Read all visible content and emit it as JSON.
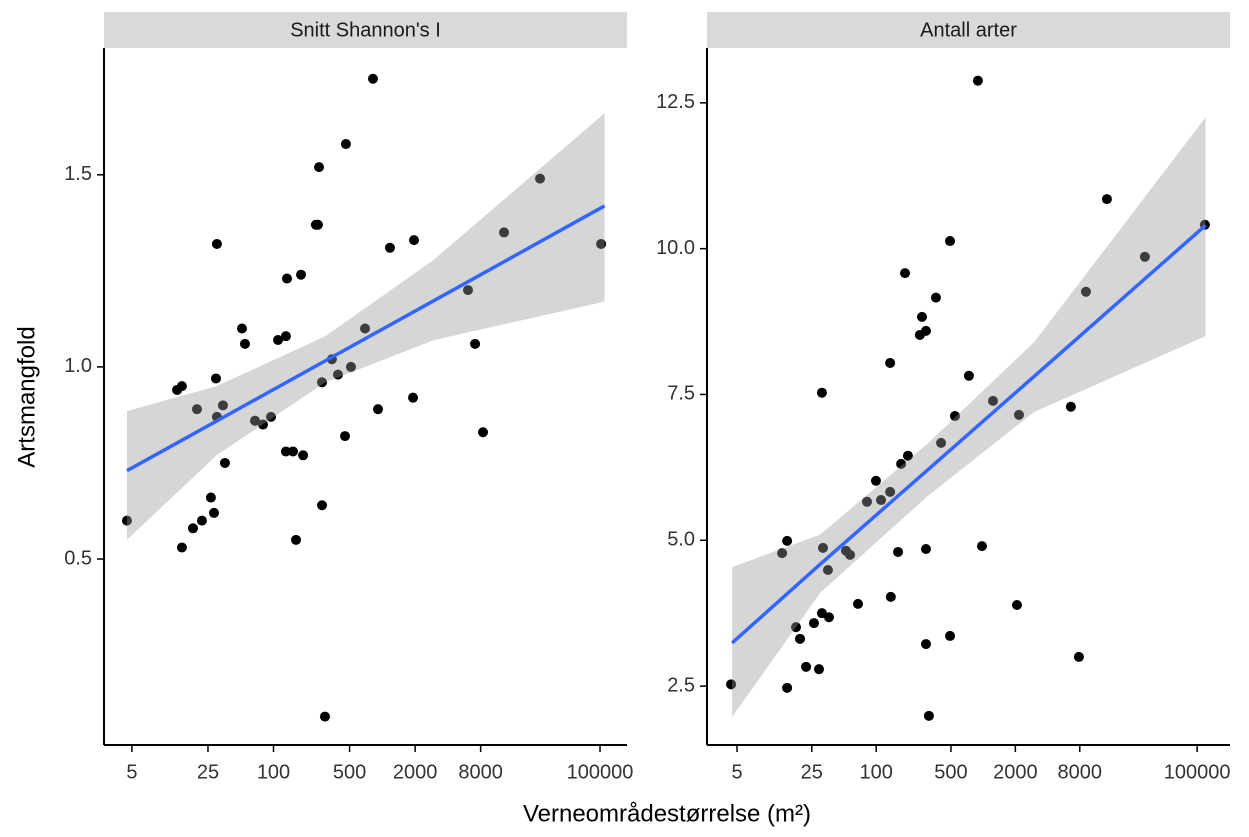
{
  "xlabel": "Verneområdestørrelse (m²)",
  "ylabel": "Artsmangfold",
  "chart_data": [
    {
      "type": "scatter",
      "title": "Snitt Shannon's I",
      "log_x": true,
      "color": "#000000",
      "xlim": [
        2.77,
        177000
      ],
      "xticks": [
        5,
        25,
        100,
        500,
        2000,
        8000,
        100000
      ],
      "ylim": [
        0.016,
        1.83
      ],
      "yticks": [
        0.5,
        1.0,
        1.5
      ],
      "x": [
        4.5,
        14.4,
        13.0,
        14.4,
        18.2,
        19.8,
        22,
        26.6,
        28.4,
        29.6,
        30.2,
        30.2,
        34.3,
        35.8,
        51.3,
        54.7,
        67.6,
        80,
        94.8,
        110,
        130,
        133,
        130,
        151,
        161,
        179,
        187,
        245,
        256,
        262,
        279,
        279,
        297,
        344,
        391,
        463,
        454,
        515,
        693,
        820,
        912,
        1175,
        1954,
        1914,
        6124,
        7112,
        8414,
        13120,
        28120,
        102300
      ],
      "y": [
        0.6,
        0.53,
        0.94,
        0.95,
        0.58,
        0.89,
        0.6,
        0.66,
        0.62,
        0.97,
        0.87,
        1.32,
        0.9,
        0.75,
        1.1,
        1.06,
        0.86,
        0.85,
        0.87,
        1.07,
        1.08,
        1.23,
        0.78,
        0.78,
        0.55,
        1.24,
        0.77,
        1.37,
        1.37,
        1.52,
        0.96,
        0.64,
        0.09,
        1.02,
        0.98,
        1.58,
        0.82,
        1.0,
        1.1,
        1.75,
        0.89,
        1.31,
        1.33,
        0.92,
        1.2,
        1.06,
        0.83,
        1.35,
        1.49,
        1.32
      ],
      "fit": {
        "color": "#3366ff",
        "fill": "#999999",
        "x": [
          4.5,
          30,
          300,
          3000,
          110000
        ],
        "y": [
          0.73,
          0.859,
          1.016,
          1.173,
          1.419
        ],
        "lower": [
          0.55,
          0.77,
          0.96,
          1.07,
          1.17
        ],
        "upper": [
          0.885,
          0.95,
          1.08,
          1.28,
          1.66
        ]
      }
    },
    {
      "type": "scatter",
      "title": "Antall arter",
      "log_x": true,
      "color": "#000000",
      "xlim": [
        2.62,
        203000
      ],
      "xticks": [
        5,
        25,
        100,
        500,
        2000,
        8000,
        100000
      ],
      "ylim": [
        1.49,
        13.44
      ],
      "yticks": [
        2.5,
        5.0,
        7.5,
        10.0,
        12.5
      ],
      "x": [
        4.4,
        13.2,
        14.7,
        14.7,
        17.8,
        19.4,
        22.1,
        26.2,
        29.2,
        31.1,
        31.1,
        31.8,
        35.4,
        36.2,
        52.2,
        56.9,
        67.6,
        82,
        99.5,
        111,
        135,
        135,
        137,
        160,
        171,
        186,
        198,
        256,
        268,
        292,
        292,
        292,
        311,
        362,
        404,
        490,
        490,
        545,
        736,
        893,
        975,
        1236,
        2070,
        2163,
        6607,
        7852,
        9141,
        14350,
        32510,
        118300
      ],
      "y": [
        2.53,
        4.78,
        2.47,
        4.99,
        3.51,
        3.31,
        2.83,
        3.58,
        2.79,
        7.53,
        3.75,
        4.87,
        4.49,
        3.68,
        4.82,
        4.75,
        3.91,
        5.66,
        6.02,
        5.69,
        5.83,
        8.04,
        4.03,
        4.8,
        6.31,
        9.58,
        6.45,
        8.52,
        8.83,
        8.59,
        4.85,
        3.22,
        1.99,
        9.16,
        6.67,
        10.13,
        3.36,
        7.13,
        7.82,
        12.88,
        4.9,
        7.39,
        3.89,
        7.15,
        7.29,
        3.0,
        9.26,
        10.85,
        9.86,
        10.41
      ],
      "fit": {
        "color": "#3366ff",
        "fill": "#999999",
        "x": [
          4.5,
          30,
          300,
          3000,
          120000
        ],
        "y": [
          3.24,
          4.59,
          6.2,
          7.81,
          10.4
        ],
        "lower": [
          1.97,
          4.1,
          5.75,
          7.2,
          8.5
        ],
        "upper": [
          4.54,
          5.1,
          6.65,
          8.4,
          12.25
        ]
      }
    }
  ]
}
